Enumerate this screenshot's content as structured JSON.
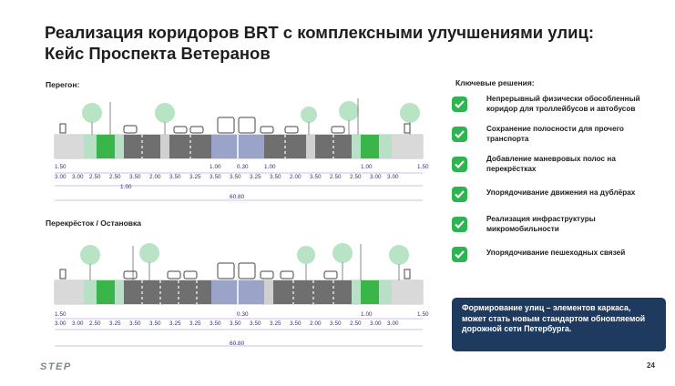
{
  "title": {
    "line1": "Реализация коридоров BRT с комплексными улучшениями улиц:",
    "line2": "Кейс Проспекта Ветеранов"
  },
  "sections": [
    {
      "label": "Перегон:",
      "dims_top": [
        "1.50",
        "1.00",
        "0.30",
        "1.00",
        "1.00",
        "1.50"
      ],
      "dims_main": [
        "3.00",
        "3.00",
        "2.50",
        "2.50",
        "3.50",
        "2.00",
        "3.50",
        "3.25",
        "3.50",
        "3.50",
        "3.25",
        "3.50",
        "2.00",
        "3.50",
        "2.50",
        "2.50",
        "3.00",
        "3.00"
      ],
      "dims_bottom": [
        "1.00"
      ],
      "total": "60.80"
    },
    {
      "label": "Перекрёсток / Остановка",
      "dims_top": [
        "1.50",
        "0.30",
        "1.00",
        "1.50"
      ],
      "dims_main": [
        "3.00",
        "3.00",
        "2.50",
        "3.25",
        "3.50",
        "3.50",
        "3.25",
        "3.25",
        "3.50",
        "3.50",
        "3.50",
        "3.25",
        "3.50",
        "2.00",
        "3.50",
        "2.50",
        "3.00",
        "3.00"
      ],
      "total": "60.80"
    }
  ],
  "solutions": {
    "heading": "Ключевые решения:",
    "items": [
      "Непрерывный физически обособленный коридор для троллейбусов и автобусов",
      "Сохранение полосности для прочего транспорта",
      "Добавление маневровых полос на перекрёстках",
      "Упорядочивание движения на дублёрах",
      "Реализация инфраструктуры микромобильности",
      "Упорядочивание пешеходных связей"
    ]
  },
  "callout": "Формирование улиц – элементов каркаса, может стать новым стандартом обновляемой дорожной сети Петербурга.",
  "footer": {
    "logo": "STEP",
    "page": "24"
  },
  "colors": {
    "green": "#2eb551",
    "navy": "#1f3a5f",
    "road": "#6f6f6f",
    "bus_lane": "#9aa3c8",
    "bike_lane": "#39b54a",
    "sidewalk": "#d9d9d9",
    "verge": "#b8e0c6"
  }
}
